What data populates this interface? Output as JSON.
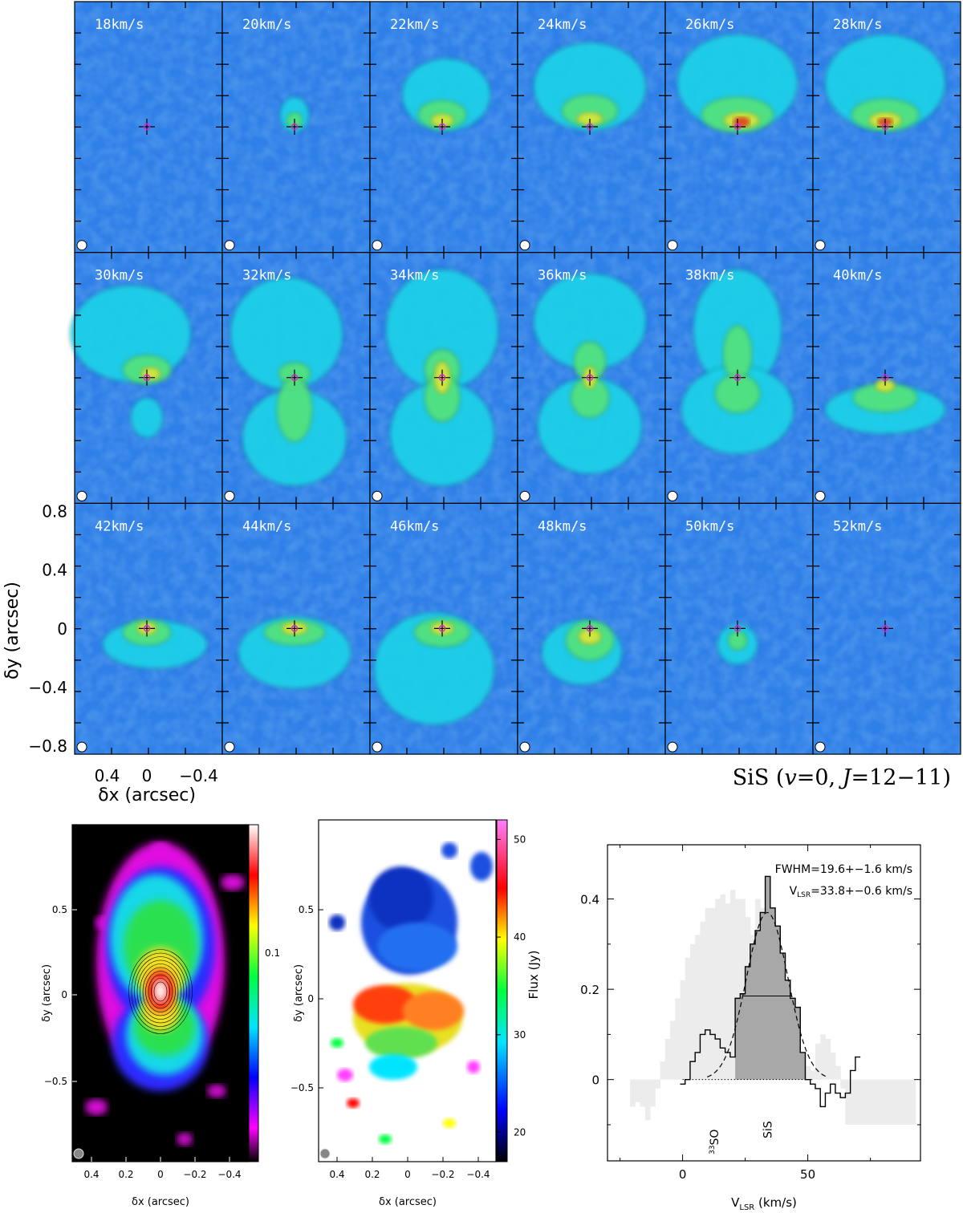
{
  "channel_maps": {
    "title": "SiS (v=0, J=12−11)",
    "title_parts": {
      "molecule": "SiS (",
      "v": "v",
      "v_val": "=0, ",
      "j": "J",
      "j_val": "=12−11)"
    },
    "xlabel": "δx (arcsec)",
    "ylabel": "δy (arcsec)",
    "xticks": [
      "0.4",
      "0",
      "−0.4"
    ],
    "yticks": [
      "0.8",
      "0.4",
      "0",
      "−0.4",
      "−0.8"
    ],
    "panel_labels": [
      "18km/s",
      "20km/s",
      "22km/s",
      "24km/s",
      "26km/s",
      "28km/s",
      "30km/s",
      "32km/s",
      "34km/s",
      "36km/s",
      "38km/s",
      "40km/s",
      "42km/s",
      "44km/s",
      "46km/s",
      "48km/s",
      "50km/s",
      "52km/s"
    ],
    "colors": {
      "background": "#2f7fe8",
      "emission_low": "#19d6e6",
      "emission_mid": "#4fe07a",
      "emission_high": "#e0e030",
      "peak": "#e02020",
      "marker": "#e020e0"
    }
  },
  "moment0": {
    "ylabel": "δy (arcsec)",
    "xlabel": "δx (arcsec)",
    "yticks": [
      "0.5",
      "0",
      "−0.5"
    ],
    "xticks": [
      "0.4",
      "0.2",
      "0",
      "−0.2",
      "−0.4"
    ],
    "colorbar_ticks": [
      "0.1"
    ]
  },
  "moment1": {
    "ylabel": "δy (arcsec)",
    "xlabel": "δx (arcsec)",
    "yticks": [
      "0.5",
      "0",
      "−0.5"
    ],
    "xticks": [
      "0.4",
      "0.2",
      "0",
      "−0.2",
      "−0.4"
    ],
    "colorbar_ticks": [
      "50",
      "40",
      "30",
      "20"
    ]
  },
  "chart_data": {
    "type": "bar",
    "ylabel": "Flux (Jy)",
    "xlabel": "VLSR (km/s)",
    "xlim": [
      -30,
      95
    ],
    "ylim": [
      -0.18,
      0.52
    ],
    "xticks": [
      "0",
      "50"
    ],
    "yticks": [
      "0",
      "0.2",
      "0.4"
    ],
    "annotations": {
      "fwhm": "FWHM=19.6+−1.6 km/s",
      "vlsr_prefix": "V",
      "vlsr_sub": "LSR",
      "vlsr_rest": "=33.8+−0.6 km/s",
      "line1": "33SO",
      "line2": "SiS"
    },
    "series": [
      {
        "name": "",
        "x": [
          -20,
          -18,
          -16,
          -14,
          -12,
          -10,
          -8,
          -6,
          -4,
          -2,
          0,
          2,
          4,
          6,
          8,
          10,
          12,
          14,
          16,
          18,
          20,
          22,
          24,
          26,
          28,
          30,
          32,
          34,
          36,
          38,
          40,
          42,
          44,
          46,
          48,
          50,
          52,
          54,
          56,
          58,
          60,
          62,
          64,
          66,
          68,
          70,
          72,
          74,
          76,
          78,
          80,
          82,
          84,
          86,
          88,
          90,
          92
        ],
        "values": [
          -0.06,
          -0.05,
          -0.06,
          -0.09,
          -0.06,
          -0.02,
          0.04,
          0.09,
          0.13,
          0.18,
          0.22,
          0.27,
          0.3,
          0.32,
          0.35,
          0.38,
          0.38,
          0.4,
          0.41,
          0.39,
          0.42,
          0.4,
          0.4,
          0.36,
          0.32,
          0.4,
          0.38,
          0.35,
          0.26,
          0.27,
          0.25,
          0.2,
          0.13,
          0.08,
          0.06,
          0.03,
          0.02,
          0.08,
          0.1,
          0.09,
          0.06,
          0.03,
          -0.02,
          -0.1,
          -0.1,
          -0.1,
          -0.1,
          -0.1,
          -0.1,
          -0.1,
          -0.1,
          -0.1,
          -0.1,
          -0.1,
          -0.1,
          -0.1,
          -0.1
        ]
      },
      {
        "name": "",
        "x": [
          0,
          2,
          4,
          6,
          8,
          10,
          12,
          14,
          16,
          18,
          20,
          22,
          24,
          26,
          28,
          30,
          32,
          34,
          36,
          38,
          40,
          42,
          44,
          46,
          48,
          50,
          52,
          54,
          56,
          58,
          60,
          62,
          64,
          66,
          68,
          70
        ],
        "values": [
          -0.01,
          0.0,
          0.04,
          0.06,
          0.1,
          0.11,
          0.1,
          0.09,
          0.07,
          0.06,
          0.05,
          0.18,
          0.19,
          0.25,
          0.3,
          0.33,
          0.37,
          0.45,
          0.38,
          0.34,
          0.28,
          0.22,
          0.18,
          0.16,
          0.06,
          0.0,
          -0.01,
          -0.02,
          -0.06,
          -0.03,
          -0.01,
          -0.03,
          -0.04,
          -0.03,
          0.02,
          0.05
        ]
      }
    ],
    "fit": {
      "center": 33.8,
      "fwhm": 19.6,
      "peak": 0.37
    },
    "shaded_range": [
      22,
      50
    ]
  }
}
